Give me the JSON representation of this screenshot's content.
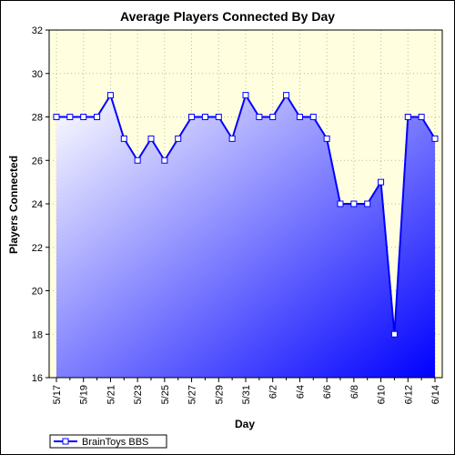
{
  "chart_data": {
    "type": "area",
    "title": "Average Players Connected By Day",
    "xlabel": "Day",
    "ylabel": "Players Connected",
    "ylim": [
      16,
      32
    ],
    "y_ticks": [
      16,
      18,
      20,
      22,
      24,
      26,
      28,
      30,
      32
    ],
    "grid": true,
    "legend_position": "bottom-left",
    "x": [
      "5/17",
      "5/18",
      "5/19",
      "5/20",
      "5/21",
      "5/22",
      "5/23",
      "5/24",
      "5/25",
      "5/26",
      "5/27",
      "5/28",
      "5/29",
      "5/30",
      "5/31",
      "6/1",
      "6/2",
      "6/3",
      "6/4",
      "6/5",
      "6/6",
      "6/7",
      "6/8",
      "6/9",
      "6/10",
      "6/11",
      "6/12",
      "6/13",
      "6/14"
    ],
    "x_tick_labels": [
      "5/17",
      "5/19",
      "5/21",
      "5/23",
      "5/25",
      "5/27",
      "5/29",
      "5/31",
      "6/2",
      "6/4",
      "6/6",
      "6/8",
      "6/10",
      "6/12",
      "6/14"
    ],
    "series": [
      {
        "name": "BrainToys BBS",
        "values": [
          28,
          28,
          28,
          28,
          29,
          27,
          26,
          27,
          26,
          27,
          28,
          28,
          28,
          27,
          29,
          28,
          28,
          29,
          28,
          28,
          27,
          24,
          24,
          24,
          25,
          18,
          28,
          28,
          27
        ],
        "color": "#0000ff"
      }
    ],
    "colors": {
      "plot_background": "#ffffe0",
      "area_top_left": "#ffffff",
      "area_bottom_right": "#0000ff",
      "line": "#0000ff",
      "marker_fill": "#ffffff"
    }
  }
}
